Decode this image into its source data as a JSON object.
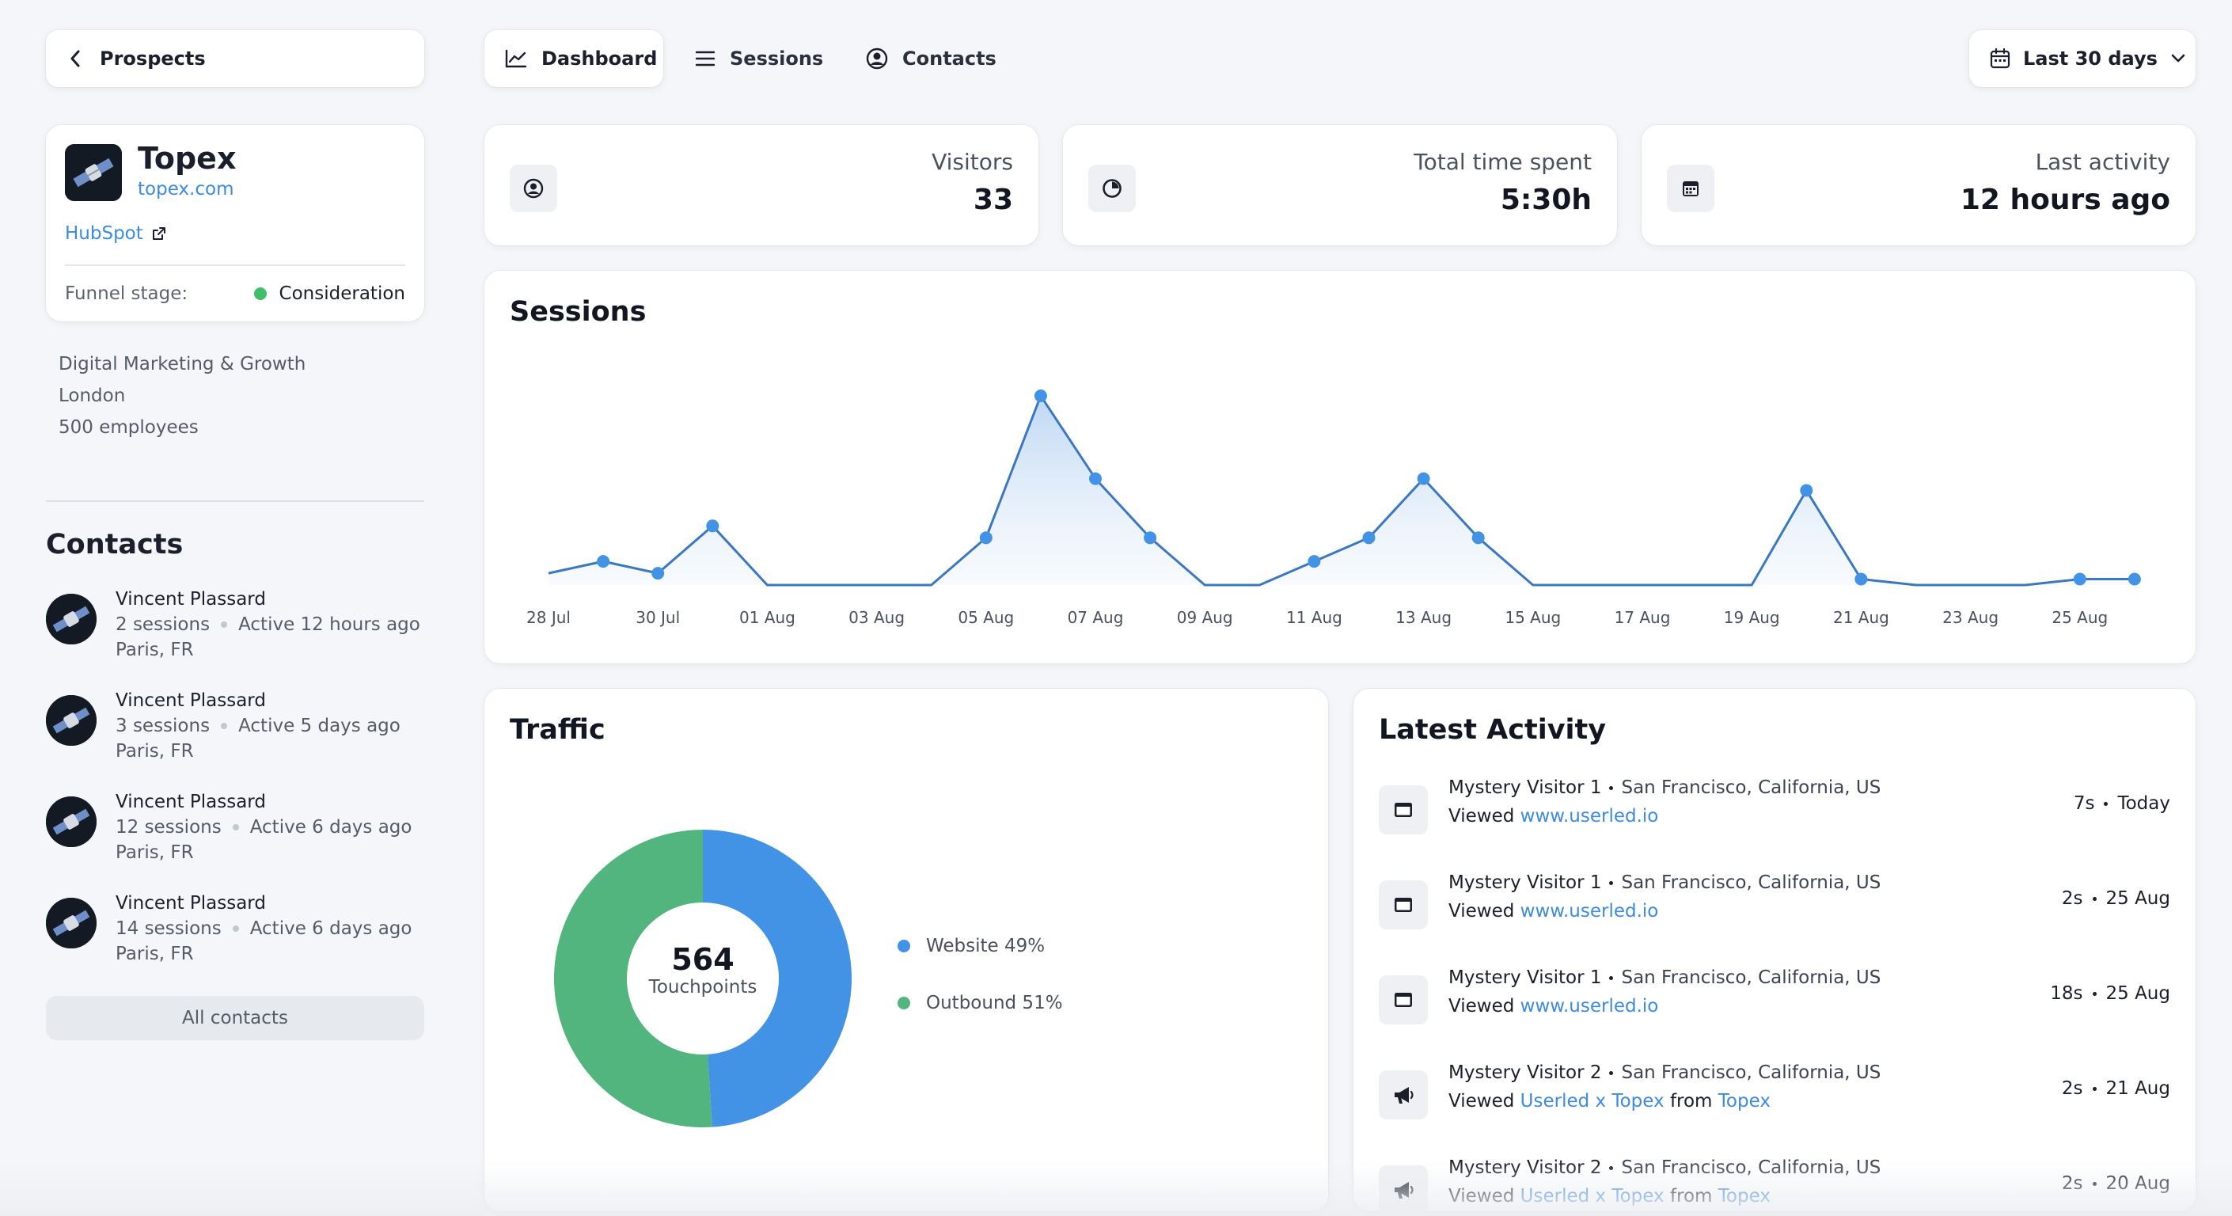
{
  "nav": {
    "back_label": "Prospects",
    "tabs": [
      {
        "label": "Dashboard",
        "icon": "line-chart-icon",
        "active": true
      },
      {
        "label": "Sessions",
        "icon": "list-icon"
      },
      {
        "label": "Contacts",
        "icon": "user-circle-icon"
      }
    ],
    "date_range": "Last 30 days"
  },
  "company": {
    "name": "Topex",
    "domain": "topex.com",
    "crm_link": "HubSpot",
    "funnel_label": "Funnel stage:",
    "funnel_stage": "Consideration",
    "funnel_color": "#3fbf6a",
    "industry": "Digital Marketing & Growth",
    "city": "London",
    "employees": "500 employees"
  },
  "contacts": {
    "title": "Contacts",
    "items": [
      {
        "name": "Vincent Plassard",
        "sessions": "2 sessions",
        "active": "Active 12 hours ago",
        "location": "Paris, FR"
      },
      {
        "name": "Vincent Plassard",
        "sessions": "3 sessions",
        "active": "Active 5 days ago",
        "location": "Paris, FR"
      },
      {
        "name": "Vincent Plassard",
        "sessions": "12 sessions",
        "active": "Active 6 days ago",
        "location": "Paris, FR"
      },
      {
        "name": "Vincent Plassard",
        "sessions": "14 sessions",
        "active": "Active 6 days ago",
        "location": "Paris, FR"
      }
    ],
    "all_label": "All contacts"
  },
  "stats": {
    "visitors": {
      "label": "Visitors",
      "value": "33"
    },
    "time": {
      "label": "Total time spent",
      "value": "5:30h"
    },
    "activity": {
      "label": "Last activity",
      "value": "12 hours ago"
    }
  },
  "sessions": {
    "title": "Sessions",
    "chart_data": {
      "type": "area",
      "x": [
        "28 Jul",
        "29 Jul",
        "30 Jul",
        "31 Jul",
        "01 Aug",
        "02 Aug",
        "03 Aug",
        "04 Aug",
        "05 Aug",
        "06 Aug",
        "07 Aug",
        "08 Aug",
        "09 Aug",
        "10 Aug",
        "11 Aug",
        "12 Aug",
        "13 Aug",
        "14 Aug",
        "15 Aug",
        "16 Aug",
        "17 Aug",
        "18 Aug",
        "19 Aug",
        "20 Aug",
        "21 Aug",
        "22 Aug",
        "23 Aug",
        "24 Aug",
        "25 Aug",
        "26 Aug"
      ],
      "values": [
        1,
        2,
        1,
        5,
        0,
        0,
        0,
        0,
        4,
        16,
        9,
        4,
        0,
        0,
        2,
        4,
        9,
        4,
        0,
        0,
        0,
        0,
        0,
        8,
        0.5,
        0,
        0,
        0,
        0.5,
        0.5
      ],
      "markers": [
        1,
        2,
        3,
        8,
        9,
        10,
        11,
        14,
        15,
        16,
        17,
        23,
        24,
        28,
        29
      ],
      "tick_labels": [
        "28 Jul",
        "30 Jul",
        "01 Aug",
        "03 Aug",
        "05 Aug",
        "07 Aug",
        "09 Aug",
        "11 Aug",
        "13 Aug",
        "15 Aug",
        "17 Aug",
        "19 Aug",
        "21 Aug",
        "23 Aug",
        "25 Aug"
      ],
      "ylim": [
        0,
        16
      ],
      "color": "#3a78c2",
      "marker_color": "#4293e6",
      "grid": false
    }
  },
  "traffic": {
    "title": "Traffic",
    "total": "564",
    "total_label": "Touchpoints",
    "chart_data": {
      "type": "pie",
      "categories": [
        "Website",
        "Outbound"
      ],
      "values": [
        49,
        51
      ],
      "colors": [
        "#4293e6",
        "#52b57e"
      ],
      "legend": [
        "Website 49%",
        "Outbound 51%"
      ]
    }
  },
  "activity": {
    "title": "Latest Activity",
    "items": [
      {
        "icon": "browser-window-icon",
        "visitor": "Mystery Visitor 1",
        "location": "San Francisco, California, US",
        "viewed": "Viewed",
        "page": "www.userled.io",
        "from_label": "",
        "source": "",
        "duration": "7s",
        "when": "Today"
      },
      {
        "icon": "browser-window-icon",
        "visitor": "Mystery Visitor 1",
        "location": "San Francisco, California, US",
        "viewed": "Viewed",
        "page": "www.userled.io",
        "from_label": "",
        "source": "",
        "duration": "2s",
        "when": "25 Aug"
      },
      {
        "icon": "browser-window-icon",
        "visitor": "Mystery Visitor 1",
        "location": "San Francisco, California, US",
        "viewed": "Viewed",
        "page": "www.userled.io",
        "from_label": "",
        "source": "",
        "duration": "18s",
        "when": "25 Aug"
      },
      {
        "icon": "megaphone-icon",
        "visitor": "Mystery Visitor 2",
        "location": "San Francisco, California, US",
        "viewed": "Viewed",
        "page": "Userled x Topex",
        "from_label": "from",
        "source": "Topex",
        "duration": "2s",
        "when": "21 Aug"
      },
      {
        "icon": "megaphone-icon",
        "visitor": "Mystery Visitor 2",
        "location": "San Francisco, California, US",
        "viewed": "Viewed",
        "page": "Userled x Topex",
        "from_label": "from",
        "source": "Topex",
        "duration": "2s",
        "when": "20 Aug"
      }
    ]
  }
}
